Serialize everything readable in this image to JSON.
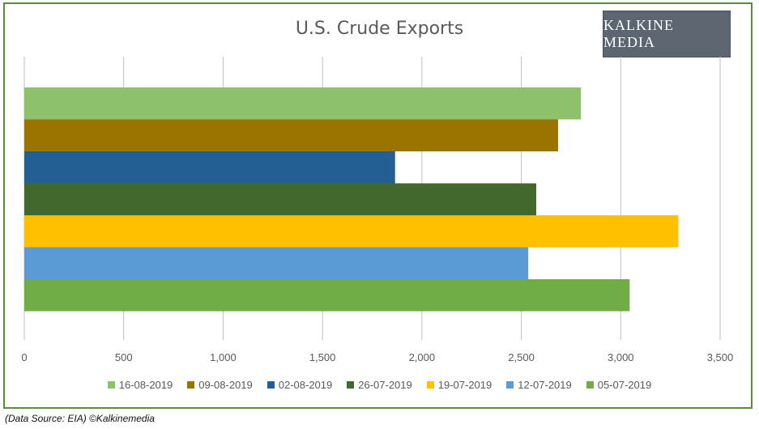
{
  "chart_data": {
    "type": "bar",
    "orientation": "horizontal",
    "title": "U.S. Crude Exports",
    "xlabel": "",
    "ylabel": "",
    "xlim": [
      0,
      3500
    ],
    "x_ticks": [
      "0",
      "500",
      "1,000",
      "1,500",
      "2,000",
      "2,500",
      "3,000",
      "3,500"
    ],
    "grid": "vertical",
    "legend_position": "bottom",
    "series": [
      {
        "name": "16-08-2019",
        "value": 2800,
        "color": "#8dc26b"
      },
      {
        "name": "09-08-2019",
        "value": 2685,
        "color": "#9b7300"
      },
      {
        "name": "02-08-2019",
        "value": 1865,
        "color": "#245f93"
      },
      {
        "name": "26-07-2019",
        "value": 2575,
        "color": "#43682c"
      },
      {
        "name": "19-07-2019",
        "value": 3290,
        "color": "#ffc000"
      },
      {
        "name": "12-07-2019",
        "value": 2535,
        "color": "#5b9bd5"
      },
      {
        "name": "05-07-2019",
        "value": 3045,
        "color": "#70ad47"
      }
    ]
  },
  "logo_text": "KALKINE MEDIA",
  "source_text": "(Data Source: EIA) ©Kalkinemedia"
}
